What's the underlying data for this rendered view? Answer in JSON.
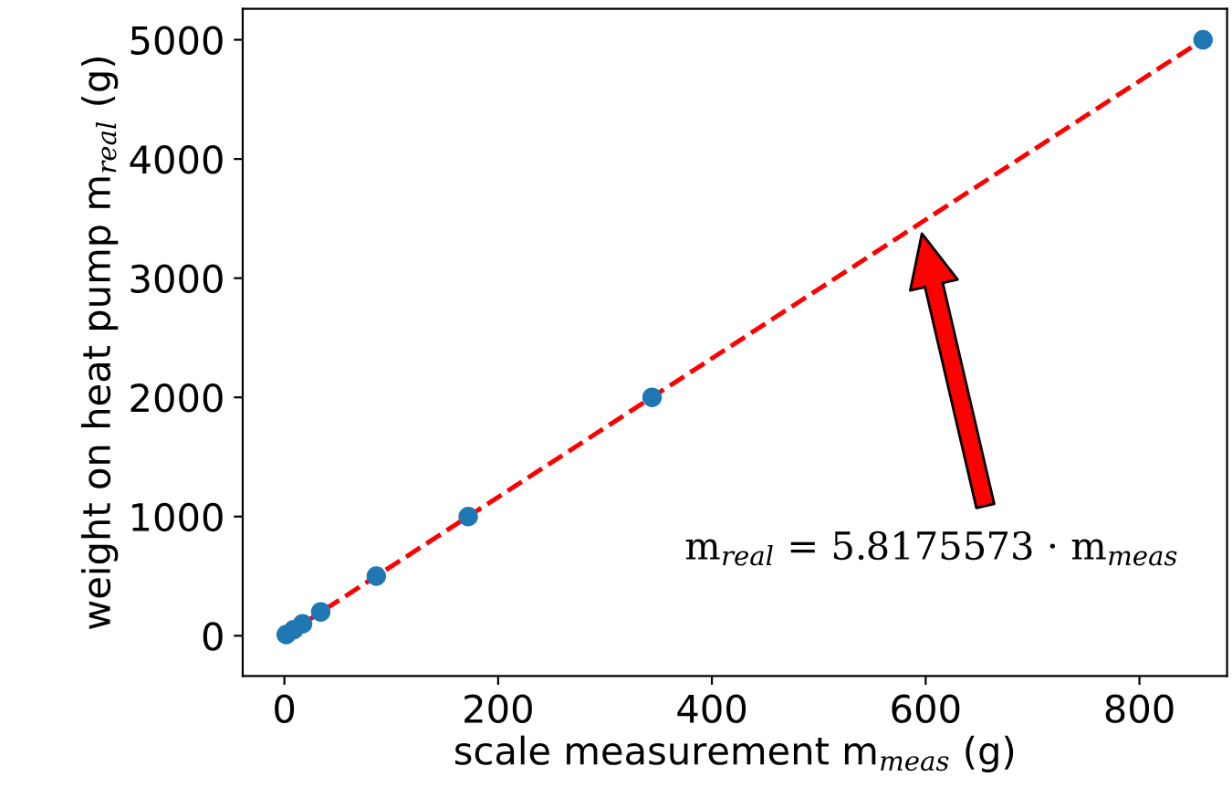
{
  "chart_data": {
    "type": "scatter",
    "xlabel": "scale measurement m$_{meas}$ (g)",
    "ylabel": "weight on heat pump m$_{real}$ (g)",
    "series": [
      {
        "color": "#1f77b4",
        "marker": "circle",
        "x": [
          1.7,
          8.6,
          17,
          34,
          86,
          172,
          344,
          859.5
        ],
        "values": [
          10,
          50,
          100,
          200,
          500,
          1000,
          2000,
          5000
        ]
      },
      {
        "type": "line",
        "color": "#ff0000",
        "line_style": "dashed",
        "marker": "none",
        "x": [
          0,
          859.5
        ],
        "values": [
          0,
          5000
        ]
      }
    ],
    "xlim": [
      -39,
      882
    ],
    "ylim": [
      -337,
      5260
    ],
    "xticks": [
      0,
      200,
      400,
      600,
      800
    ],
    "yticks": [
      0,
      1000,
      2000,
      3000,
      4000,
      5000
    ],
    "grid": false,
    "annotations": [
      "m$_{real}$ = 5.8175573 · m$_{meas}$"
    ]
  }
}
